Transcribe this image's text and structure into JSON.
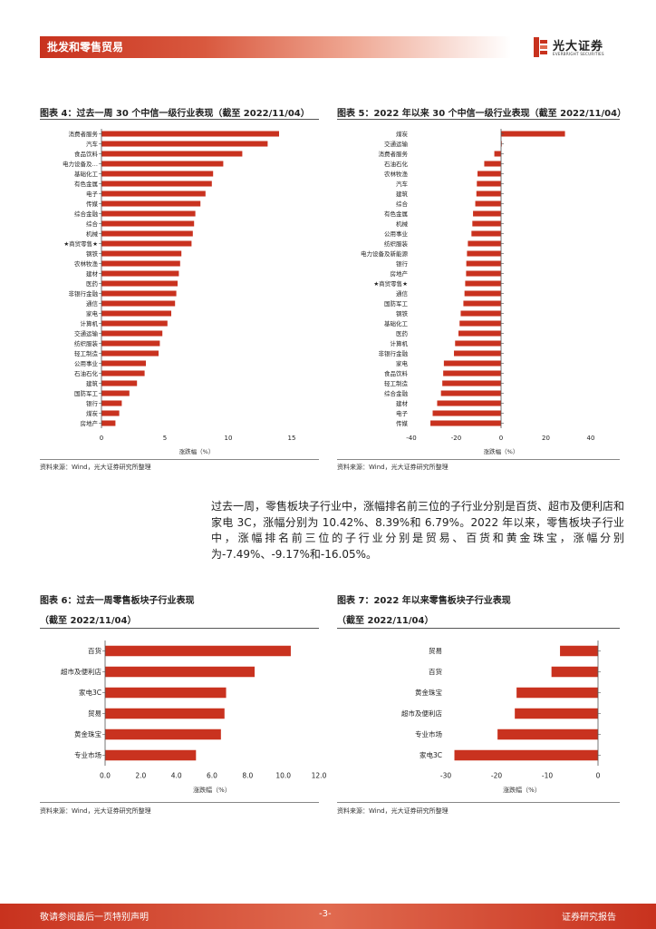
{
  "header": {
    "section": "批发和零售贸易",
    "logo_name": "光大证券",
    "logo_sub": "EVERBRIGHT SECURITIES"
  },
  "colors": {
    "bar": "#c9321f",
    "accent": "#c8321e"
  },
  "figures": [
    {
      "title": "图表 4：过去一周 30 个中信一级行业表现（截至 2022/11/04）",
      "source": "资料来源：Wind，光大证券研究所整理"
    },
    {
      "title": "图表 5：2022 年以来 30 个中信一级行业表现（截至 2022/11/04）",
      "source": "资料来源：Wind，光大证券研究所整理"
    },
    {
      "title": "图表 6：过去一周零售板块子行业表现",
      "title2": "（截至 2022/11/04）",
      "source": "资料来源：Wind，光大证券研究所整理"
    },
    {
      "title": "图表 7：2022 年以来零售板块子行业表现",
      "title2": "（截至 2022/11/04）",
      "source": "资料来源：Wind，光大证券研究所整理"
    }
  ],
  "paragraph": "过去一周，零售板块子行业中，涨幅排名前三位的子行业分别是百货、超市及便利店和家电 3C，涨幅分别为 10.42%、8.39%和 6.79%。2022 年以来，零售板块子行业中，涨幅排名前三位的子行业分别是贸易、百货和黄金珠宝，涨幅分别为-7.49%、-9.17%和-16.05%。",
  "footer": {
    "left": "敬请参阅最后一页特别声明",
    "center": "-3-",
    "right": "证券研究报告"
  },
  "chart_data": [
    {
      "type": "bar",
      "orientation": "horizontal",
      "xlabel": "涨跌幅（%）",
      "xlim": [
        0,
        15
      ],
      "xticks": [
        "0",
        "5",
        "10",
        "15"
      ],
      "categories": [
        "消费者服务",
        "汽车",
        "食品饮料",
        "电力设备及…",
        "基础化工",
        "有色金属",
        "电子",
        "传媒",
        "综合金融",
        "综合",
        "机械",
        "★商贸零售★",
        "钢铁",
        "农林牧渔",
        "建材",
        "医药",
        "非银行金融",
        "通信",
        "家电",
        "计算机",
        "交通运输",
        "纺织服装",
        "轻工制造",
        "公用事业",
        "石油石化",
        "建筑",
        "国防军工",
        "银行",
        "煤炭",
        "房地产"
      ],
      "values": [
        14.0,
        13.1,
        11.1,
        9.6,
        8.8,
        8.7,
        8.2,
        7.8,
        7.4,
        7.3,
        7.2,
        7.1,
        6.3,
        6.2,
        6.1,
        6.0,
        5.9,
        5.8,
        5.5,
        5.2,
        4.8,
        4.6,
        4.5,
        3.5,
        3.4,
        2.8,
        2.2,
        1.6,
        1.4,
        1.1
      ]
    },
    {
      "type": "bar",
      "orientation": "horizontal",
      "xlabel": "涨跌幅（%）",
      "xlim": [
        -40,
        40
      ],
      "xticks": [
        "-40",
        "-20",
        "0",
        "20",
        "40"
      ],
      "categories": [
        "煤炭",
        "交通运输",
        "消费者服务",
        "石油石化",
        "农林牧渔",
        "汽车",
        "建筑",
        "综合",
        "有色金属",
        "机械",
        "公用事业",
        "纺织服装",
        "电力设备及新能源",
        "银行",
        "房地产",
        "★商贸零售★",
        "通信",
        "国防军工",
        "钢铁",
        "基础化工",
        "医药",
        "计算机",
        "非银行金融",
        "家电",
        "食品饮料",
        "轻工制造",
        "综合金融",
        "建材",
        "电子",
        "传媒"
      ],
      "values": [
        28.5,
        0.3,
        -3.0,
        -7.5,
        -10.5,
        -10.8,
        -11.0,
        -11.5,
        -12.5,
        -12.8,
        -13.2,
        -14.8,
        -15.2,
        -15.5,
        -15.6,
        -16.0,
        -16.3,
        -16.8,
        -18.0,
        -18.5,
        -19.0,
        -20.5,
        -21.0,
        -25.5,
        -25.8,
        -26.2,
        -26.8,
        -28.5,
        -30.5,
        -31.5
      ]
    },
    {
      "type": "bar",
      "orientation": "horizontal",
      "xlabel": "涨跌幅（%）",
      "xlim": [
        0,
        12
      ],
      "xticks": [
        "0.0",
        "2.0",
        "4.0",
        "6.0",
        "8.0",
        "10.0",
        "12.0"
      ],
      "categories": [
        "百货",
        "超市及便利店",
        "家电3C",
        "贸易",
        "黄金珠宝",
        "专业市场"
      ],
      "values": [
        10.42,
        8.39,
        6.79,
        6.7,
        6.5,
        5.1
      ]
    },
    {
      "type": "bar",
      "orientation": "horizontal",
      "xlabel": "涨跌幅（%）",
      "xlim": [
        -30,
        0
      ],
      "xticks": [
        "-30",
        "-20",
        "-10",
        "0"
      ],
      "categories": [
        "贸易",
        "百货",
        "黄金珠宝",
        "超市及便利店",
        "专业市场",
        "家电3C"
      ],
      "values": [
        -7.49,
        -9.17,
        -16.05,
        -16.4,
        -19.8,
        -28.3
      ]
    }
  ]
}
